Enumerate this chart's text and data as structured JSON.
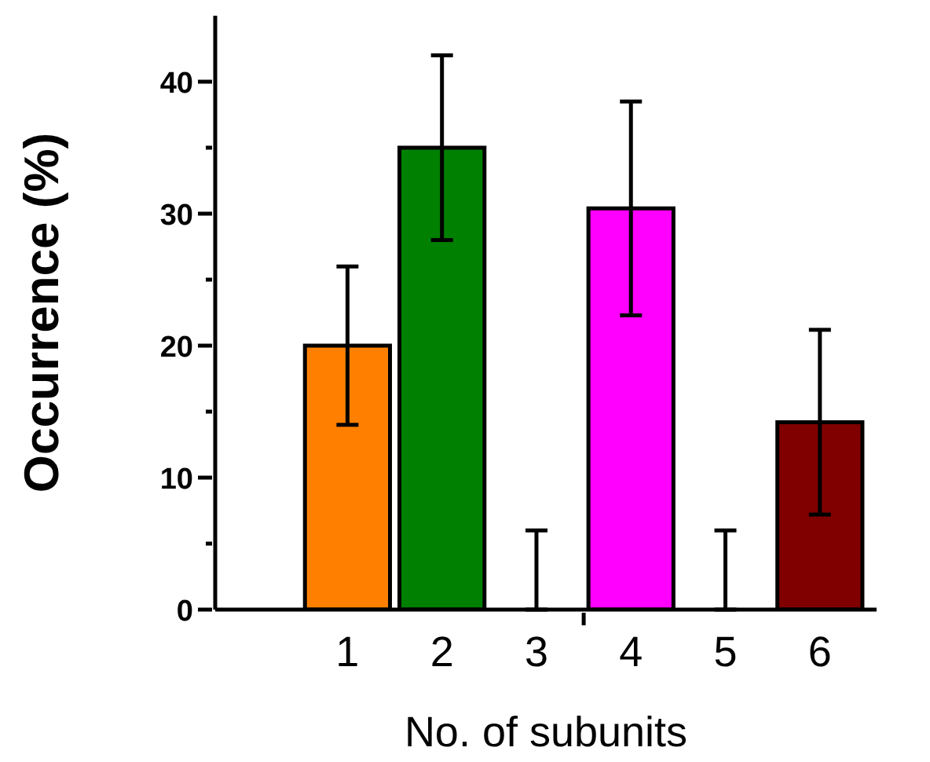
{
  "chart_data": {
    "type": "bar",
    "xlabel": "No. of subunits",
    "ylabel": "Occurrence (%)",
    "x": [
      1,
      2,
      3,
      4,
      5,
      6
    ],
    "values": [
      20,
      35,
      0,
      30.4,
      0,
      14.2
    ],
    "errors": [
      6,
      7,
      [
        0,
        6
      ],
      8.1,
      [
        0,
        6
      ],
      7
    ],
    "colors": [
      "#ff8000",
      "#008000",
      null,
      "#ff00ff",
      null,
      "#800000"
    ],
    "xlim": [
      -0.4,
      6.6
    ],
    "xticks": [
      1,
      2,
      3,
      {
        "value": 3.5,
        "label": null
      },
      4,
      5,
      6
    ],
    "ylim": [
      0,
      45
    ],
    "yticks": [
      0,
      {
        "value": 5,
        "label": null
      },
      10,
      {
        "value": 15,
        "label": null
      },
      20,
      {
        "value": 25,
        "label": null
      },
      30,
      {
        "value": 35,
        "label": null
      },
      40
    ],
    "grid": false,
    "legend": false
  }
}
